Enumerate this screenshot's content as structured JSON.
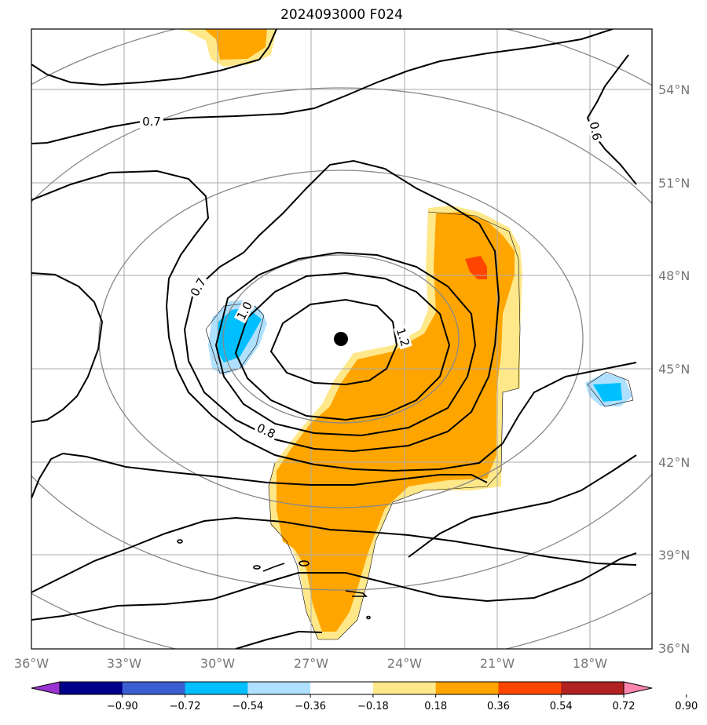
{
  "title": "2024093000 F024",
  "axes": {
    "lon_ticks": [
      "36°W",
      "33°W",
      "30°W",
      "27°W",
      "24°W",
      "21°W",
      "18°W"
    ],
    "lat_ticks": [
      "36°N",
      "39°N",
      "42°N",
      "45°N",
      "48°N",
      "51°N",
      "54°N"
    ]
  },
  "contour_labels": [
    "0.7",
    "0.6",
    "0.7",
    "1.0",
    "1.2",
    "0.8"
  ],
  "colorbar": {
    "ticks": [
      "−0.90",
      "−0.72",
      "−0.54",
      "−0.36",
      "−0.18",
      "0.18",
      "0.36",
      "0.54",
      "0.72",
      "0.90"
    ],
    "colors": [
      "#9a35d4",
      "#00008b",
      "#3b5fd0",
      "#00bfff",
      "#b0e0ff",
      "#ffffff",
      "#ffe88a",
      "#ffa500",
      "#ff4500",
      "#b22222",
      "#ff85b0"
    ]
  },
  "center_marker": {
    "lon": -26.1,
    "lat": 45.9
  },
  "colors": {
    "fill_orange": "#ffa500",
    "fill_yellow": "#ffe88a",
    "fill_red": "#ff4500",
    "fill_cyan": "#00bfff",
    "fill_lightblue": "#b0e0ff",
    "grid": "#aaaaaa",
    "range_rings": "#888888"
  }
}
